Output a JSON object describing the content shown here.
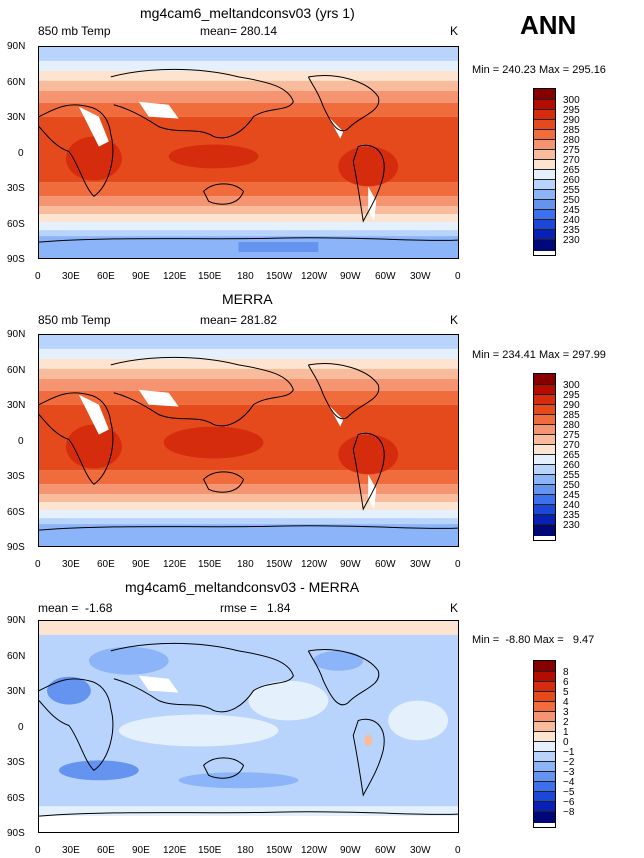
{
  "season": "ANN",
  "panels": [
    {
      "title": "mg4cam6_meltandconsv03 (yrs 1)",
      "left_label": "850 mb Temp",
      "center_label": "mean= 280.14",
      "unit": "K",
      "minmax": "Min = 240.23 Max = 295.16",
      "colorbar_labels": [
        "300",
        "295",
        "290",
        "285",
        "280",
        "275",
        "270",
        "265",
        "260",
        "255",
        "250",
        "245",
        "240",
        "235",
        "230"
      ],
      "colors": [
        "#870000",
        "#b50c00",
        "#d42c0c",
        "#e44a1c",
        "#f06c3c",
        "#f49470",
        "#f8bc9c",
        "#fce4d0",
        "#e4f0fc",
        "#b8d4fc",
        "#8cb4f8",
        "#6494f0",
        "#3c70ec",
        "#1c48d8",
        "#0820b4",
        "#000878"
      ]
    },
    {
      "title": "MERRA",
      "left_label": "850 mb Temp",
      "center_label": "mean= 281.82",
      "unit": "K",
      "minmax": "Min = 234.41 Max = 297.99",
      "colorbar_labels": [
        "300",
        "295",
        "290",
        "285",
        "280",
        "275",
        "270",
        "265",
        "260",
        "255",
        "250",
        "245",
        "240",
        "235",
        "230"
      ],
      "colors": [
        "#870000",
        "#b50c00",
        "#d42c0c",
        "#e44a1c",
        "#f06c3c",
        "#f49470",
        "#f8bc9c",
        "#fce4d0",
        "#e4f0fc",
        "#b8d4fc",
        "#8cb4f8",
        "#6494f0",
        "#3c70ec",
        "#1c48d8",
        "#0820b4",
        "#000878"
      ]
    },
    {
      "title": "mg4cam6_meltandconsv03 - MERRA",
      "left_label": "mean =  -1.68",
      "center_label": "rmse =   1.84",
      "unit": "K",
      "minmax": "Min =  -8.80 Max =   9.47",
      "colorbar_labels": [
        "8",
        "6",
        "5",
        "4",
        "3",
        "2",
        "1",
        "0",
        "−1",
        "−2",
        "−3",
        "−4",
        "−5",
        "−6",
        "−8"
      ],
      "colors": [
        "#870000",
        "#b50c00",
        "#d42c0c",
        "#e44a1c",
        "#f06c3c",
        "#f49470",
        "#f8bc9c",
        "#fce4d0",
        "#e4f0fc",
        "#b8d4fc",
        "#8cb4f8",
        "#6494f0",
        "#3c70ec",
        "#1c48d8",
        "#0820b4",
        "#000878"
      ]
    }
  ],
  "lat_ticks": [
    "90N",
    "60N",
    "30N",
    "0",
    "30S",
    "60S",
    "90S"
  ],
  "lon_ticks": [
    "0",
    "30E",
    "60E",
    "90E",
    "120E",
    "150E",
    "180",
    "150W",
    "120W",
    "90W",
    "60W",
    "30W",
    "0"
  ]
}
